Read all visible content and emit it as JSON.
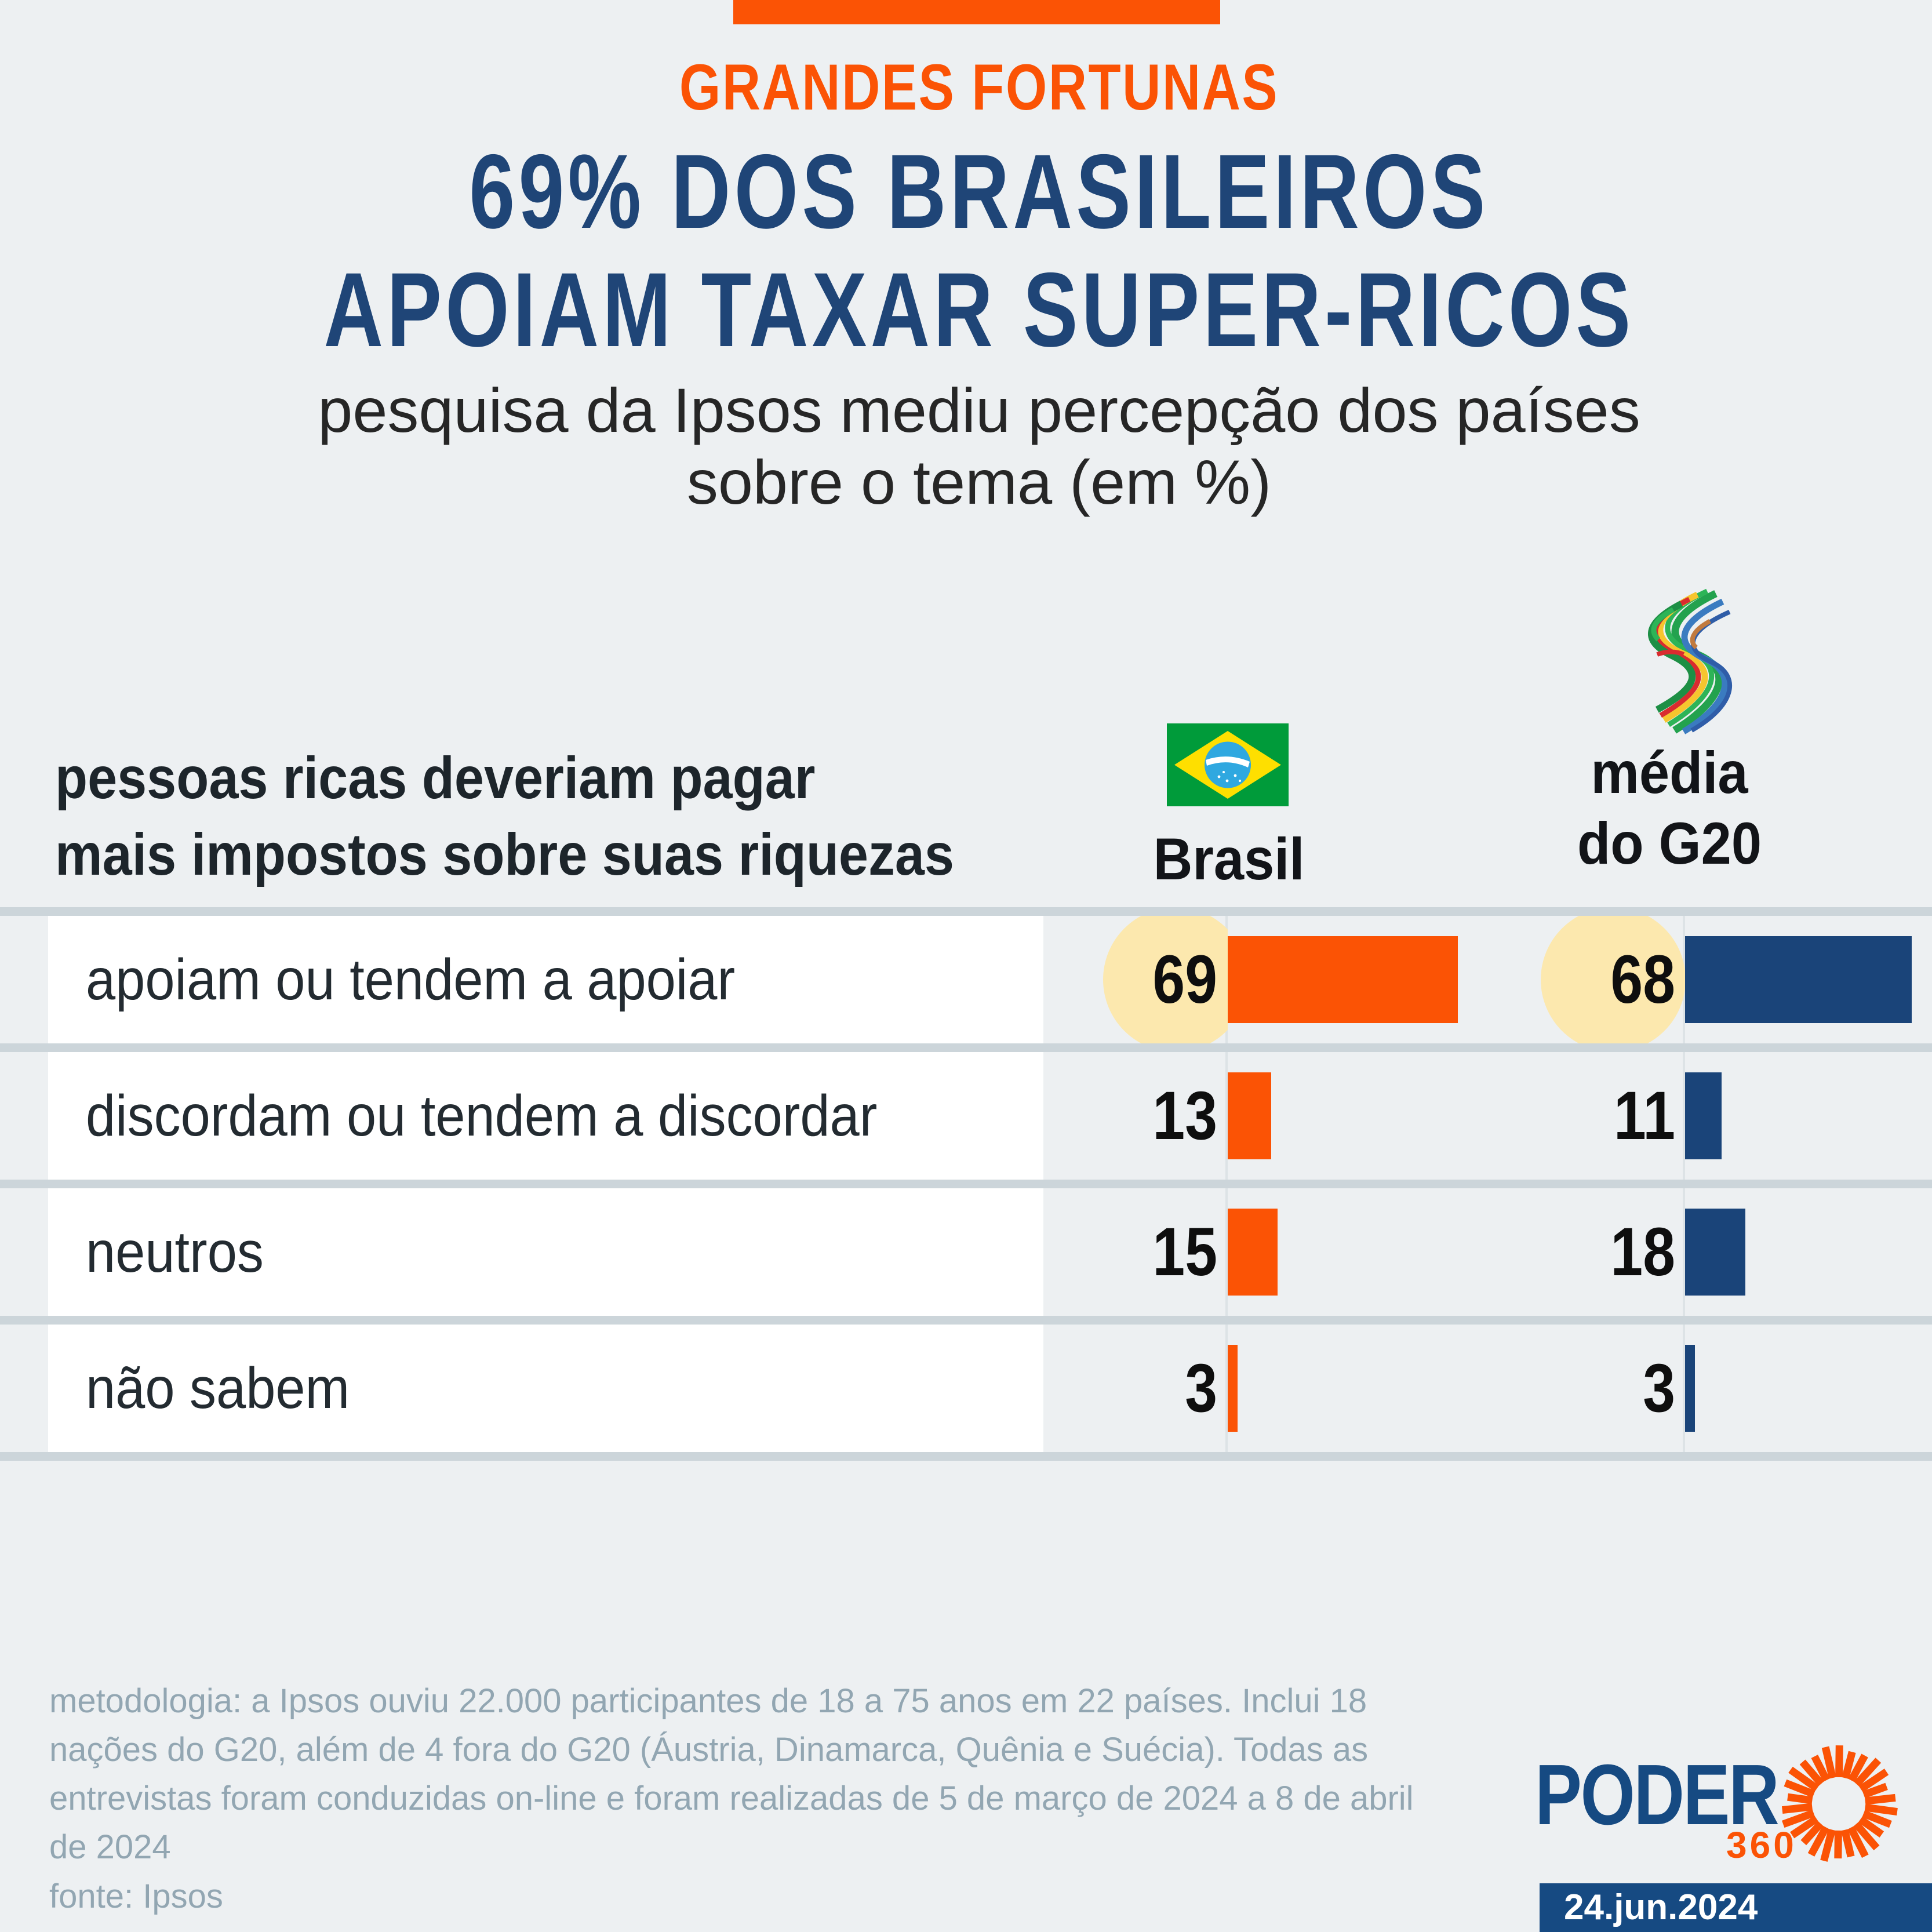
{
  "header": {
    "kicker": "GRANDES FORTUNAS",
    "title_line1": "69% DOS BRASILEIROS",
    "title_line2": "APOIAM TAXAR SUPER-RICOS",
    "subtitle_line1": "pesquisa da Ipsos mediu percepção dos países",
    "subtitle_line2": "sobre o tema (em %)"
  },
  "table": {
    "question_line1": "pessoas ricas deveriam pagar",
    "question_line2": "mais impostos sobre suas riquezas",
    "columns": [
      {
        "id": "brasil",
        "label": "Brasil",
        "icon": "brazil-flag-icon"
      },
      {
        "id": "g20",
        "label_line1": "média",
        "label_line2": "do G20",
        "icon": "g20-logo-icon"
      }
    ],
    "rows": [
      {
        "label": "apoiam ou tendem a apoiar",
        "brasil": 69,
        "g20": 68,
        "highlight": true
      },
      {
        "label": "discordam ou tendem a discordar",
        "brasil": 13,
        "g20": 11,
        "highlight": false
      },
      {
        "label": "neutros",
        "brasil": 15,
        "g20": 18,
        "highlight": false
      },
      {
        "label": "não sabem",
        "brasil": 3,
        "g20": 3,
        "highlight": false
      }
    ]
  },
  "chart_data": {
    "type": "bar",
    "orientation": "horizontal",
    "title": "69% DOS BRASILEIROS APOIAM TAXAR SUPER-RICOS",
    "kicker": "GRANDES FORTUNAS",
    "subtitle": "pesquisa da Ipsos mediu percepção dos países sobre o tema (em %)",
    "unit": "%",
    "categories": [
      "apoiam ou tendem a apoiar",
      "discordam ou tendem a discordar",
      "neutros",
      "não sabem"
    ],
    "series": [
      {
        "name": "Brasil",
        "values": [
          69,
          13,
          15,
          3
        ],
        "color": "#fb5305"
      },
      {
        "name": "média do G20",
        "values": [
          68,
          11,
          18,
          3
        ],
        "color": "#1a4479"
      }
    ],
    "value_labels": true,
    "highlighted_row": "apoiam ou tendem a apoiar",
    "xlim": [
      0,
      70
    ],
    "grid": false,
    "legend_position": "column-headers"
  },
  "footer": {
    "methodology": "metodologia: a Ipsos ouviu 22.000 participantes de 18 a 75 anos em 22 países. Inclui 18 nações do G20, além de 4 fora do G20 (Áustria, Dinamarca, Quênia e Suécia). Todas as entrevistas foram conduzidas on-line e foram realizadas de 5 de março de 2024 a 8 de abril de 2024",
    "source": "fonte: Ipsos",
    "brand_name": "PODER",
    "brand_sub": "360",
    "brand_icon": "poder360-sunburst-icon",
    "date": "24.jun.2024"
  },
  "colors": {
    "background": "#edf0f2",
    "accent_orange": "#fb5305",
    "bar_navy": "#1a4479",
    "title_blue": "#1f4577",
    "brand_blue": "#164a82",
    "divider_gray": "#ccd5da",
    "highlight_yellow": "#fce8ae",
    "footnote_gray": "#92a6b2"
  }
}
